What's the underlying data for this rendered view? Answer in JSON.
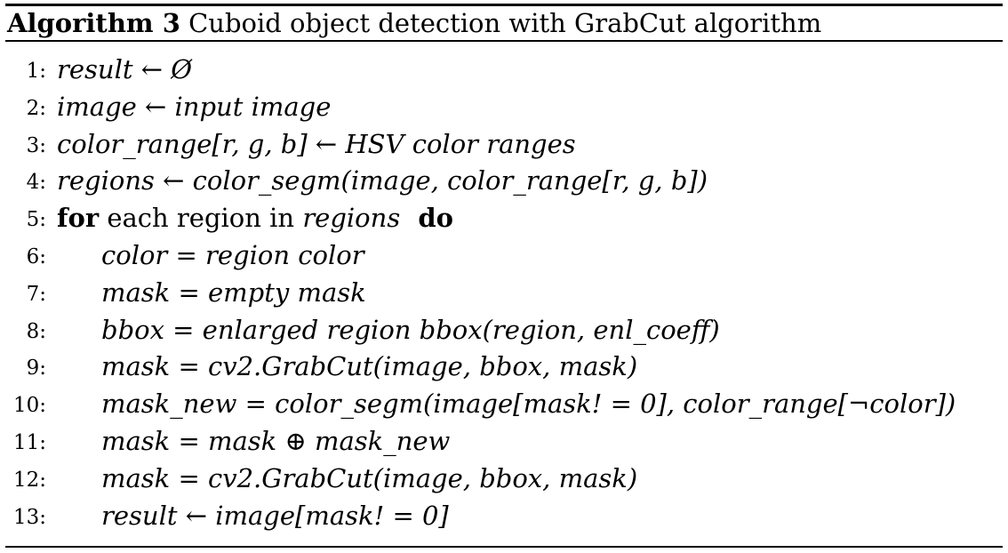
{
  "caption": {
    "label": "Algorithm 3",
    "title": "Cuboid object detection with GrabCut algorithm"
  },
  "lines": [
    {
      "number": "1:",
      "indent": 0,
      "segments": [
        {
          "text": "result ← Ø",
          "style": "math"
        }
      ]
    },
    {
      "number": "2:",
      "indent": 0,
      "segments": [
        {
          "text": "image ← input image",
          "style": "math"
        }
      ]
    },
    {
      "number": "3:",
      "indent": 0,
      "segments": [
        {
          "text": "color_range[r, g, b] ← HSV color ranges",
          "style": "math"
        }
      ]
    },
    {
      "number": "4:",
      "indent": 0,
      "segments": [
        {
          "text": "regions ← color_segm(image, color_range[r, g, b])",
          "style": "math"
        }
      ]
    },
    {
      "number": "5:",
      "indent": 0,
      "segments": [
        {
          "text": "for",
          "style": "kw"
        },
        {
          "text": " each region in ",
          "style": "rm"
        },
        {
          "text": "regions",
          "style": "math"
        },
        {
          "text": "  do",
          "style": "kw"
        }
      ]
    },
    {
      "number": "6:",
      "indent": 1,
      "segments": [
        {
          "text": "color = region color",
          "style": "math"
        }
      ]
    },
    {
      "number": "7:",
      "indent": 1,
      "segments": [
        {
          "text": "mask = empty mask",
          "style": "math"
        }
      ]
    },
    {
      "number": "8:",
      "indent": 1,
      "segments": [
        {
          "text": "bbox = enlarged region bbox(region, enl_coeff)",
          "style": "math"
        }
      ]
    },
    {
      "number": "9:",
      "indent": 1,
      "segments": [
        {
          "text": "mask = cv2.GrabCut(image, bbox, mask)",
          "style": "math"
        }
      ]
    },
    {
      "number": "10:",
      "indent": 1,
      "segments": [
        {
          "text": "mask_new = color_segm(image[mask! = 0], color_range[¬color])",
          "style": "math"
        }
      ]
    },
    {
      "number": "11:",
      "indent": 1,
      "segments": [
        {
          "text": "mask = mask ⊕ mask_new",
          "style": "math"
        }
      ]
    },
    {
      "number": "12:",
      "indent": 1,
      "segments": [
        {
          "text": "mask = cv2.GrabCut(image, bbox, mask)",
          "style": "math"
        }
      ]
    },
    {
      "number": "13:",
      "indent": 1,
      "segments": [
        {
          "text": "result ← image[mask! = 0]",
          "style": "math"
        }
      ]
    }
  ]
}
